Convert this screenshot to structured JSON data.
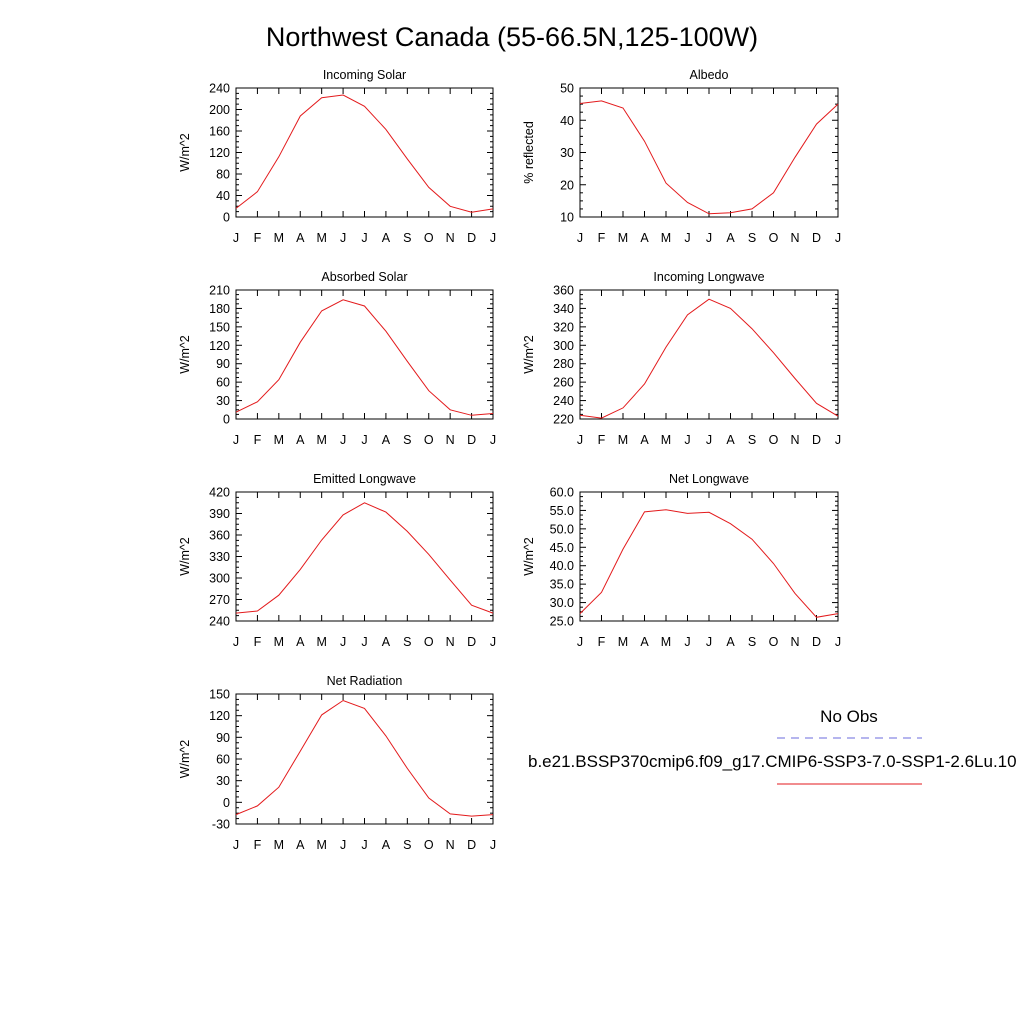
{
  "figure": {
    "title": "Northwest Canada (55-66.5N,125-100W)"
  },
  "legend": {
    "obs_label": "No Obs",
    "model_label": "b.e21.BSSP370cmip6.f09_g17.CMIP6-SSP3-7.0-SSP1-2.6Lu.10",
    "obs_color": "#6b6bdc",
    "model_color": "#e31a1c"
  },
  "chart_data": [
    {
      "type": "line",
      "title": "Incoming Solar",
      "ylabel": "W/m^2",
      "categories": [
        "J",
        "F",
        "M",
        "A",
        "M",
        "J",
        "J",
        "A",
        "S",
        "O",
        "N",
        "D",
        "J"
      ],
      "ylim": [
        0,
        240
      ],
      "yticks": [
        "0",
        "40",
        "80",
        "120",
        "160",
        "200",
        "240"
      ],
      "values": [
        16,
        47,
        112,
        188,
        222,
        227,
        206,
        163,
        108,
        55,
        20,
        9,
        15
      ],
      "color": "#e31a1c"
    },
    {
      "type": "line",
      "title": "Albedo",
      "ylabel": "% reflected",
      "categories": [
        "J",
        "F",
        "M",
        "A",
        "M",
        "J",
        "J",
        "A",
        "S",
        "O",
        "N",
        "D",
        "J"
      ],
      "ylim": [
        10,
        50
      ],
      "yticks": [
        "10",
        "20",
        "30",
        "40",
        "50"
      ],
      "values": [
        45.2,
        46.0,
        43.8,
        33.5,
        20.5,
        14.5,
        11.0,
        11.3,
        12.5,
        17.5,
        28.5,
        38.8,
        45.0
      ],
      "color": "#e31a1c"
    },
    {
      "type": "line",
      "title": "Absorbed Solar",
      "ylabel": "W/m^2",
      "categories": [
        "J",
        "F",
        "M",
        "A",
        "M",
        "J",
        "J",
        "A",
        "S",
        "O",
        "N",
        "D",
        "J"
      ],
      "ylim": [
        0,
        210
      ],
      "yticks": [
        "0",
        "30",
        "60",
        "90",
        "120",
        "150",
        "180",
        "210"
      ],
      "values": [
        11,
        28,
        64,
        125,
        176,
        194,
        184,
        143,
        94,
        46,
        15,
        6,
        9
      ],
      "color": "#e31a1c"
    },
    {
      "type": "line",
      "title": "Incoming Longwave",
      "ylabel": "W/m^2",
      "categories": [
        "J",
        "F",
        "M",
        "A",
        "M",
        "J",
        "J",
        "A",
        "S",
        "O",
        "N",
        "D",
        "J"
      ],
      "ylim": [
        220,
        360
      ],
      "yticks": [
        "220",
        "240",
        "260",
        "280",
        "300",
        "320",
        "340",
        "360"
      ],
      "values": [
        224,
        221,
        232,
        258,
        298,
        333,
        350,
        340,
        318,
        292,
        264,
        237,
        223
      ],
      "color": "#e31a1c"
    },
    {
      "type": "line",
      "title": "Emitted Longwave",
      "ylabel": "W/m^2",
      "categories": [
        "J",
        "F",
        "M",
        "A",
        "M",
        "J",
        "J",
        "A",
        "S",
        "O",
        "N",
        "D",
        "J"
      ],
      "ylim": [
        240,
        420
      ],
      "yticks": [
        "240",
        "270",
        "300",
        "330",
        "360",
        "390",
        "420"
      ],
      "values": [
        251,
        254,
        276,
        312,
        353,
        388,
        405,
        392,
        365,
        333,
        297,
        262,
        251
      ],
      "color": "#e31a1c"
    },
    {
      "type": "line",
      "title": "Net Longwave",
      "ylabel": "W/m^2",
      "categories": [
        "J",
        "F",
        "M",
        "A",
        "M",
        "J",
        "J",
        "A",
        "S",
        "O",
        "N",
        "D",
        "J"
      ],
      "ylim": [
        25,
        60
      ],
      "yticks": [
        "25.0",
        "30.0",
        "35.0",
        "40.0",
        "45.0",
        "50.0",
        "55.0",
        "60.0"
      ],
      "values": [
        27.0,
        32.8,
        44.5,
        54.6,
        55.2,
        54.2,
        54.5,
        51.4,
        47.2,
        40.6,
        32.5,
        26.0,
        27.0
      ],
      "color": "#e31a1c"
    },
    {
      "type": "line",
      "title": "Net Radiation",
      "ylabel": "W/m^2",
      "categories": [
        "J",
        "F",
        "M",
        "A",
        "M",
        "J",
        "J",
        "A",
        "S",
        "O",
        "N",
        "D",
        "J"
      ],
      "ylim": [
        -30,
        150
      ],
      "yticks": [
        "-30",
        "0",
        "30",
        "60",
        "90",
        "120",
        "150"
      ],
      "values": [
        -17,
        -5,
        21,
        71,
        121,
        141,
        130,
        92,
        47,
        6,
        -16,
        -19,
        -17
      ],
      "color": "#e31a1c"
    }
  ]
}
